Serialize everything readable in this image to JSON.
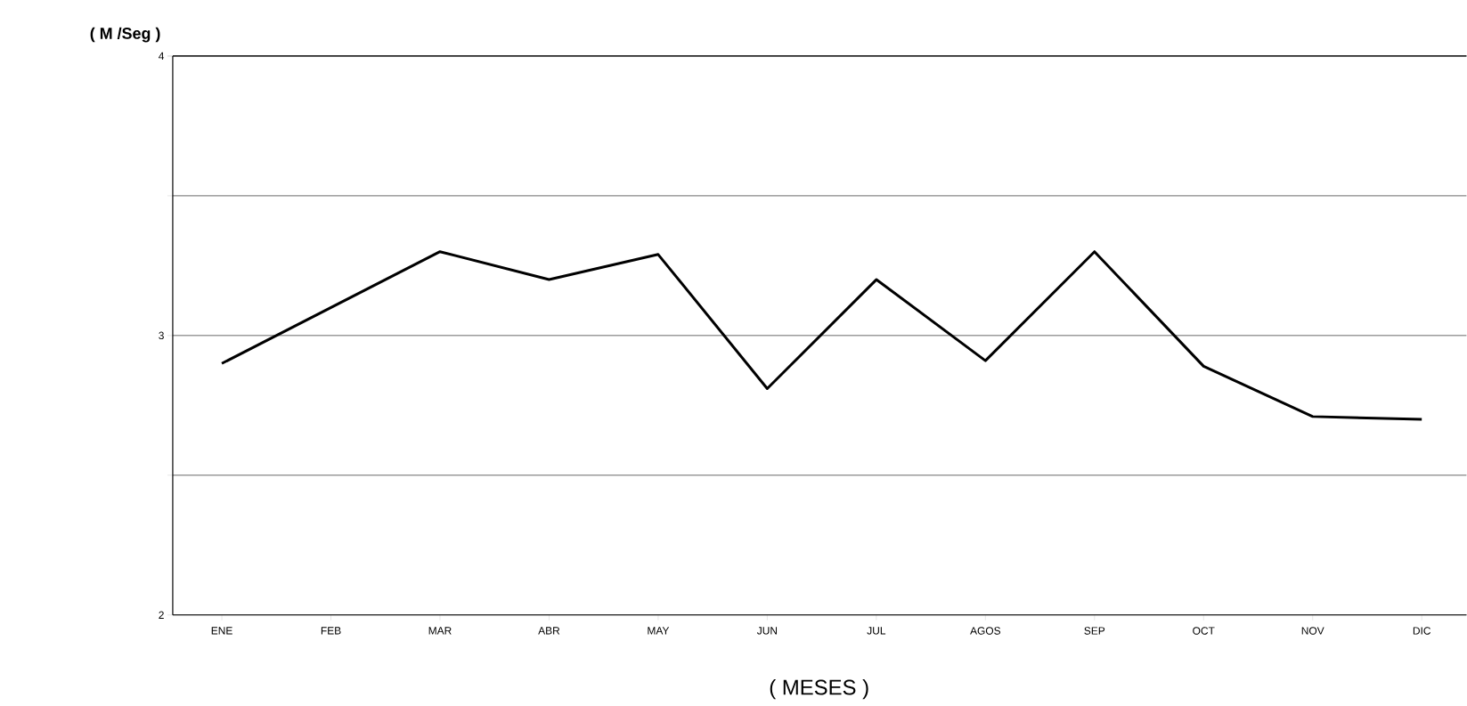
{
  "chart_data": {
    "type": "line",
    "xlabel": "( MESES )",
    "ylabel": "( M /Seg )",
    "categories": [
      "ENE",
      "FEB",
      "MAR",
      "ABR",
      "MAY",
      "JUN",
      "JUL",
      "AGOS",
      "SEP",
      "OCT",
      "NOV",
      "DIC"
    ],
    "values": [
      2.9,
      3.1,
      3.3,
      3.2,
      3.29,
      2.81,
      3.2,
      2.91,
      3.3,
      2.89,
      2.71,
      2.7
    ],
    "color": "#000000",
    "ylim": [
      2,
      4
    ],
    "yticks": [
      2,
      {
        "value": 2.5,
        "label": null
      },
      3,
      {
        "value": 3.5,
        "label": null
      },
      4
    ],
    "grid": "y",
    "marker": "none",
    "line_style": "solid"
  }
}
